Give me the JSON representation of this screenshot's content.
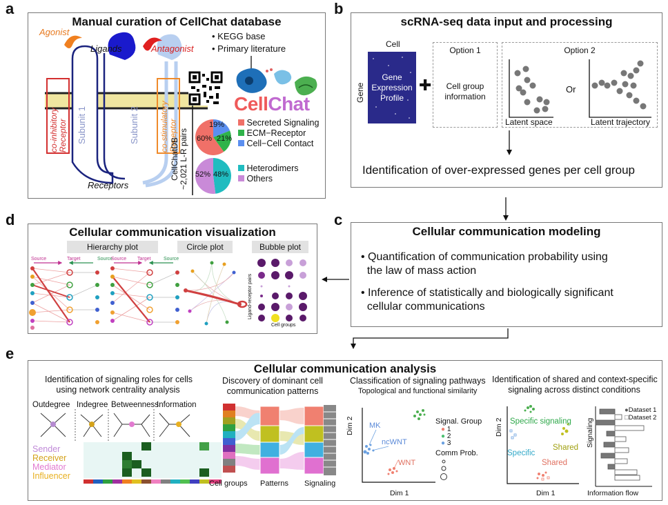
{
  "panels": {
    "a": {
      "letter": "a",
      "title": "Manual curation of CellChat database",
      "sources": [
        "• KEGG base",
        "• Primary literature"
      ],
      "agonist": "Agonist",
      "antagonist": "Antagonist",
      "ligands": "Ligands",
      "receptors": "Receptors",
      "subunit1": "Subunit 1",
      "subunit2": "Subunit 2",
      "co_inhibitory": "co-inhibitory\nReceptor",
      "co_stimulatory": "co-stimulatory\nReceptor",
      "brand": "CellChat",
      "db_label": "CellChatDB\n~2,021 L-R pairs",
      "pie1": {
        "slices": [
          {
            "label": "Secreted Signaling",
            "percent": 60,
            "color": "#f07068"
          },
          {
            "label": "ECM−Receptor",
            "percent": 21,
            "color": "#2fb34a"
          },
          {
            "label": "Cell−Cell Contact",
            "percent": 19,
            "color": "#5b8ff0"
          }
        ],
        "labels": [
          "60%",
          "21%",
          "19%"
        ]
      },
      "pie2": {
        "slices": [
          {
            "label": "Heterodimers",
            "percent": 48,
            "color": "#20bcc0"
          },
          {
            "label": "Others",
            "percent": 52,
            "color": "#c98ad8"
          }
        ],
        "labels": [
          "52%",
          "48%"
        ]
      }
    },
    "b": {
      "letter": "b",
      "title": "scRNA-seq data input and processing",
      "cell": "Cell",
      "gene": "Gene",
      "matrix": "Gene\nExpression\nProfile",
      "option1": "Option 1",
      "option1_text": "Cell group\ninformation",
      "option2": "Option 2",
      "or": "Or",
      "latent_space": "Latent space",
      "latent_trajectory": "Latent trajectory",
      "result": "Identification of over-expressed genes per cell group"
    },
    "c": {
      "letter": "c",
      "title": "Cellular communication modeling",
      "bullet1": "• Quantification of communication probability using\n  the law of mass action",
      "bullet2": "• Inference of statistically and biologically significant\n  cellular communications"
    },
    "d": {
      "letter": "d",
      "title": "Cellular communication visualization",
      "hierarchy": "Hierarchy plot",
      "circle": "Circle plot",
      "bubble": "Bubble plot",
      "source": "Source",
      "target": "Target",
      "lr_pairs": "Ligand-receptor pairs",
      "cell_groups": "Cell groups"
    },
    "e": {
      "letter": "e",
      "title": "Cellular communication analysis",
      "s1_title": "Identification of signaling roles for cells\nusing network centrality analysis",
      "metrics": [
        "Outdegree",
        "Indegree",
        "Betweenness",
        "Information"
      ],
      "roles": [
        {
          "label": "Sender",
          "color": "#c08ad8"
        },
        {
          "label": "Receiver",
          "color": "#d4a21a"
        },
        {
          "label": "Mediator",
          "color": "#e27ad0"
        },
        {
          "label": "Influencer",
          "color": "#e8b020"
        }
      ],
      "s2_title": "Discovery of dominant cell\ncommunication patterns",
      "cell_groups": "Cell groups",
      "patterns": "Patterns",
      "signaling": "Signaling",
      "s3_title": "Classification of signaling pathways",
      "s3_subtitle": "Topological and functional similarity",
      "s3_labels": {
        "mk": "MK",
        "ncwnt": "ncWNT",
        "wnt": "WNT"
      },
      "signal_group": "Signal. Group",
      "groups": [
        {
          "label": "1",
          "color": "#f08070"
        },
        {
          "label": "2",
          "color": "#4cc070"
        },
        {
          "label": "3",
          "color": "#6aa0e0"
        }
      ],
      "comm_prob": "Comm Prob.",
      "dim1": "Dim 1",
      "dim2": "Dim 2",
      "s4_title": "Identification of shared and context-specific\nsignaling across distinct conditions",
      "specific_signaling": "Specific signaling",
      "specific": "Specific",
      "shared": "Shared",
      "shared2": "Shared",
      "dataset1": "Dataset 1",
      "dataset2": "Dataset 2",
      "signaling_axis": "Signaling",
      "info_flow": "Information flow"
    }
  }
}
